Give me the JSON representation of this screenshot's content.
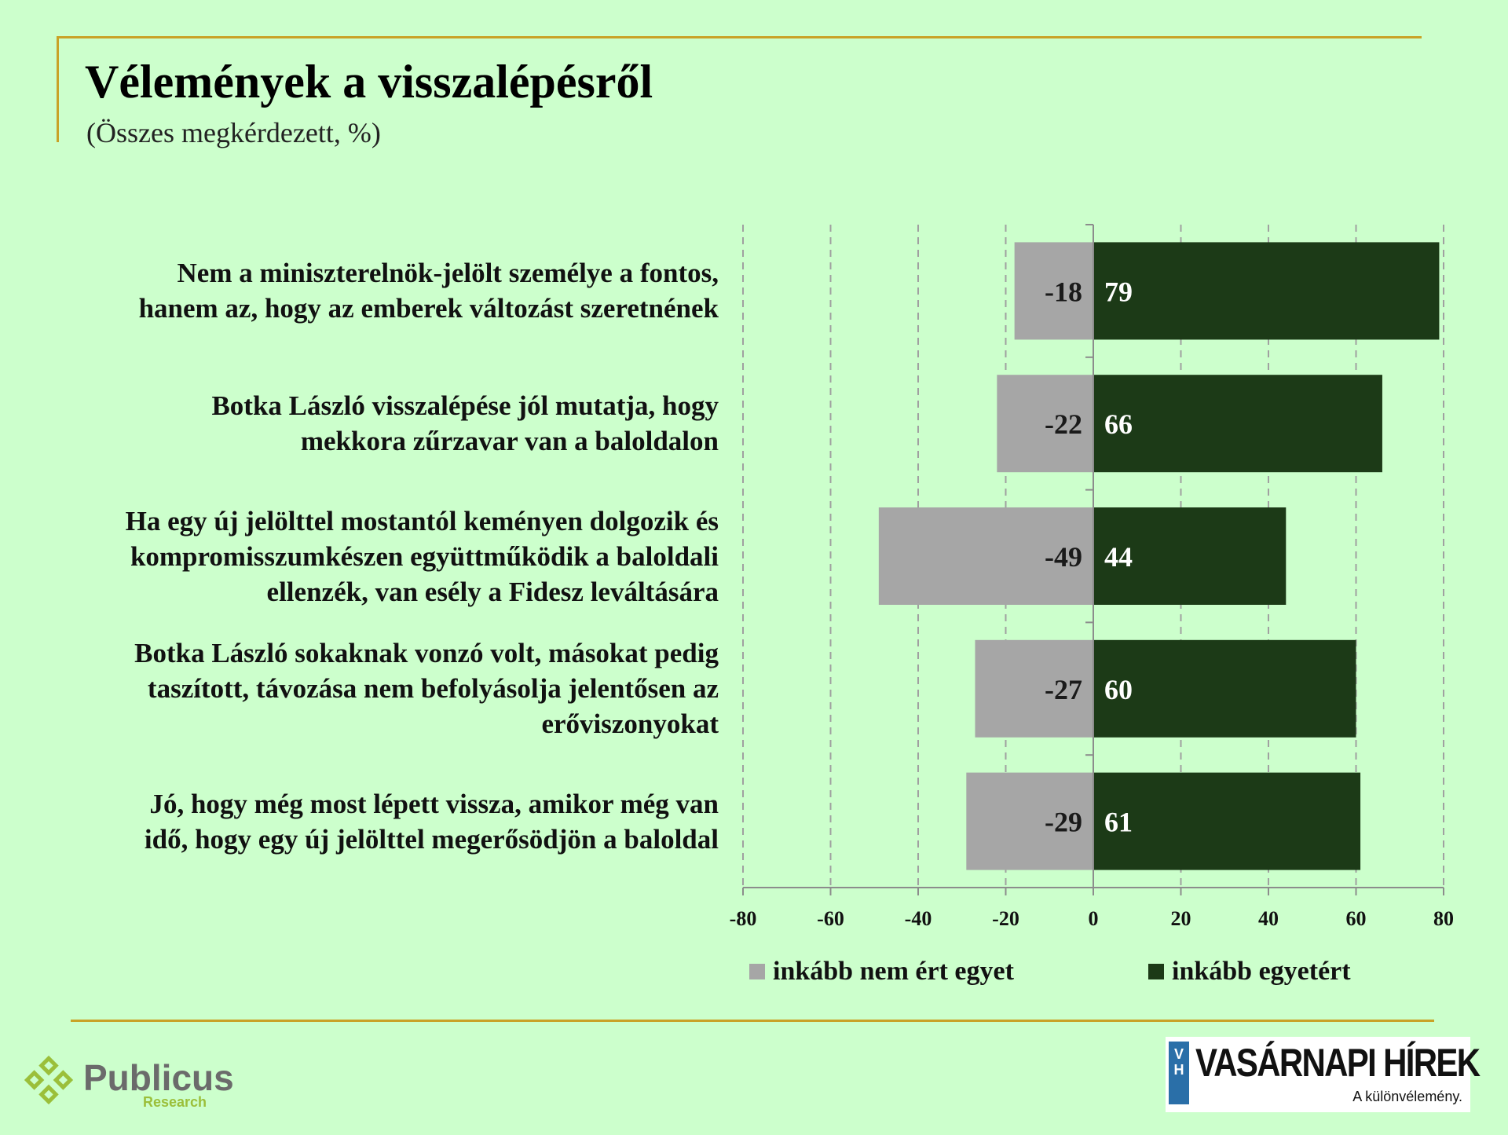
{
  "header": {
    "title": "Vélemények a visszalépésről",
    "subtitle": "(Összes megkérdezett, %)"
  },
  "chart_data": {
    "type": "bar",
    "orientation": "horizontal",
    "stacked": "diverging",
    "categories": [
      [
        "Nem a miniszterelnök-jelölt személye a fontos,",
        "hanem az, hogy az emberek változást szeretnének"
      ],
      [
        "Botka László visszalépése jól mutatja, hogy",
        "mekkora zűrzavar van a baloldalon"
      ],
      [
        "Ha egy új jelölttel mostantól keményen dolgozik és",
        "kompromisszumkészen együttműködik a baloldali",
        "ellenzék, van esély a Fidesz leváltására"
      ],
      [
        "Botka László sokaknak vonzó volt, másokat pedig",
        "taszított, távozása nem befolyásolja jelentősen az",
        "erőviszonyokat"
      ],
      [
        "Jó, hogy még most lépett vissza, amikor még van",
        "idő, hogy egy új jelölttel megerősödjön a baloldal"
      ]
    ],
    "series": [
      {
        "name": "inkább nem ért egyet",
        "values": [
          -18,
          -22,
          -49,
          -27,
          -29
        ],
        "color": "#a6a6a6"
      },
      {
        "name": "inkább egyetért",
        "values": [
          79,
          66,
          44,
          60,
          61
        ],
        "color": "#1c3a17"
      }
    ],
    "xlim": [
      -80,
      80
    ],
    "xticks": [
      "-80",
      "-60",
      "-40",
      "-20",
      "0",
      "20",
      "40",
      "60",
      "80"
    ],
    "grid": true,
    "legend_position": "bottom"
  },
  "footer": {
    "brand_left": {
      "name": "Publicus",
      "sub": "Research"
    },
    "brand_right": {
      "mark": "VH",
      "name": "VASÁRNAPI HÍREK",
      "tagline": "A különvélemény."
    }
  }
}
